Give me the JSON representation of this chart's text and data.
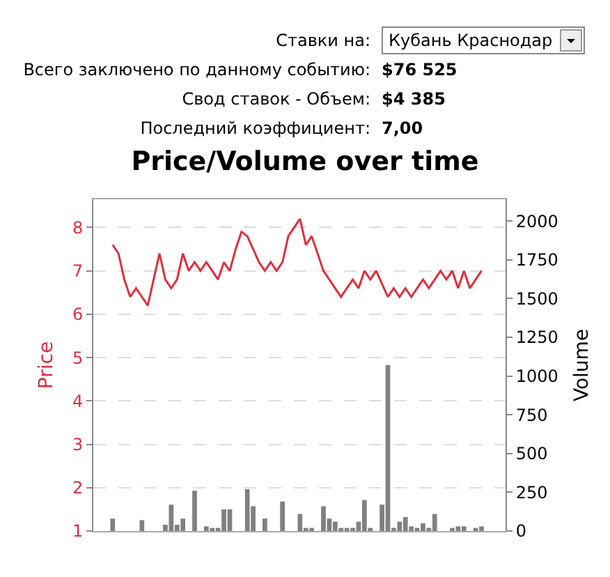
{
  "chart_data": {
    "type": "bar",
    "title": "Price/Volume over time",
    "ylabel": "Price",
    "y2label": "Volume",
    "annotations": [
      "Ставки на:",
      "Кубань Краснодар",
      "Всего заключено по данному событию:",
      "$76 525",
      "Свод ставок - Объем:",
      "$4 385",
      "Последний коэффициент:",
      "7,00"
    ],
    "categories": [
      null,
      null,
      null,
      null,
      null,
      null,
      null,
      null,
      null,
      null,
      null,
      null,
      null,
      null,
      null,
      null,
      null,
      null,
      null,
      null,
      null,
      null,
      null,
      null,
      null,
      null,
      null,
      null,
      null,
      null,
      null,
      null,
      null,
      null,
      null,
      null,
      null,
      null,
      null,
      null,
      null,
      null,
      null,
      null,
      null,
      null,
      null,
      null,
      null,
      null,
      null,
      null,
      null,
      null,
      null,
      null,
      null,
      null,
      null,
      null,
      null,
      null,
      null,
      null
    ],
    "series": [
      {
        "type": "line",
        "axis": "y",
        "color": "#d9303f",
        "values": [
          7.6,
          7.4,
          6.8,
          6.4,
          6.6,
          6.4,
          6.2,
          6.8,
          7.4,
          6.8,
          6.6,
          6.8,
          7.4,
          7.0,
          7.2,
          7.0,
          7.2,
          7.0,
          6.8,
          7.2,
          7.0,
          7.5,
          7.9,
          7.8,
          7.5,
          7.2,
          7.0,
          7.2,
          7.0,
          7.2,
          7.8,
          8.0,
          8.2,
          7.6,
          7.8,
          7.4,
          7.0,
          6.8,
          6.6,
          6.4,
          6.6,
          6.8,
          6.6,
          7.0,
          6.8,
          7.0,
          6.7,
          6.4,
          6.6,
          6.4,
          6.6,
          6.4,
          6.6,
          6.8,
          6.6,
          6.8,
          7.0,
          6.8,
          7.0,
          6.6,
          7.0,
          6.6,
          6.8,
          7.0
        ]
      },
      {
        "axis": "y2",
        "color": "#808080",
        "values": [
          80,
          null,
          null,
          null,
          null,
          70,
          null,
          null,
          null,
          40,
          170,
          40,
          80,
          null,
          260,
          null,
          30,
          20,
          20,
          140,
          140,
          null,
          null,
          270,
          160,
          null,
          80,
          null,
          null,
          190,
          null,
          null,
          110,
          20,
          20,
          null,
          160,
          80,
          60,
          20,
          20,
          20,
          60,
          200,
          20,
          null,
          170,
          1070,
          20,
          60,
          90,
          30,
          20,
          50,
          20,
          110,
          null,
          null,
          20,
          30,
          30,
          null,
          20,
          30
        ]
      }
    ],
    "ylim": [
      1,
      8.65
    ],
    "yticks": [
      1,
      2,
      3,
      4,
      5,
      6,
      7,
      8
    ],
    "y2lim": [
      0,
      2140
    ],
    "y2ticks": [
      0,
      250,
      500,
      750,
      1000,
      1250,
      1500,
      1750,
      2000
    ],
    "grid": "y",
    "legend": false
  }
}
